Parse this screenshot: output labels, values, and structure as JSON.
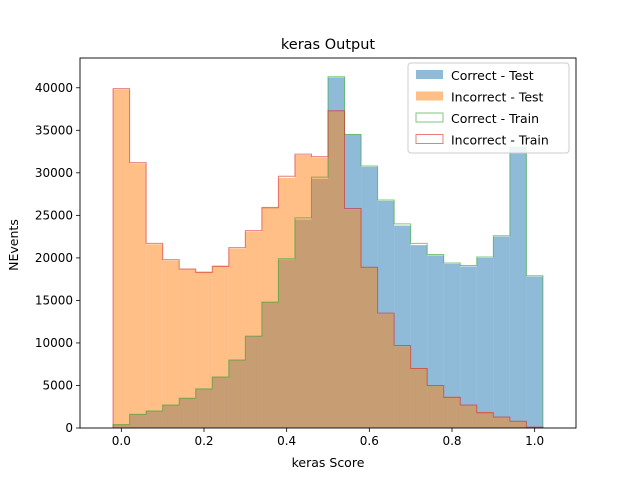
{
  "chart_data": {
    "type": "histogram",
    "title": "keras Output",
    "xlabel": "keras Score",
    "ylabel": "NEvents",
    "xlim": [
      -0.1,
      1.1
    ],
    "ylim": [
      0,
      43500
    ],
    "xticks": [
      0.0,
      0.2,
      0.4,
      0.6,
      0.8,
      1.0
    ],
    "xtick_labels": [
      "0.0",
      "0.2",
      "0.4",
      "0.6",
      "0.8",
      "1.0"
    ],
    "yticks": [
      0,
      5000,
      10000,
      15000,
      20000,
      25000,
      30000,
      35000,
      40000
    ],
    "ytick_labels": [
      "0",
      "5000",
      "10000",
      "15000",
      "20000",
      "25000",
      "30000",
      "35000",
      "40000"
    ],
    "bin_edges": [
      -0.02,
      0.02,
      0.06,
      0.1,
      0.14,
      0.18,
      0.22,
      0.26,
      0.3,
      0.34,
      0.38,
      0.42,
      0.46,
      0.5,
      0.54,
      0.58,
      0.62,
      0.66,
      0.7,
      0.74,
      0.78,
      0.82,
      0.86,
      0.9,
      0.94,
      0.98,
      1.02
    ],
    "series": [
      {
        "name": "Correct - Test",
        "style": "filled",
        "color": "#1f77b4",
        "values": [
          400,
          1600,
          2000,
          2700,
          3500,
          4600,
          6000,
          8000,
          10800,
          14800,
          19800,
          24500,
          29300,
          41200,
          34500,
          30700,
          26700,
          23800,
          21500,
          20300,
          19300,
          19000,
          20000,
          22500,
          33000,
          17800
        ]
      },
      {
        "name": "Incorrect - Test",
        "style": "filled",
        "color": "#ff7f0e",
        "values": [
          39800,
          31100,
          21600,
          19700,
          18700,
          18400,
          19100,
          21100,
          23100,
          26000,
          29400,
          32100,
          31800,
          37300,
          25700,
          18900,
          13400,
          9600,
          7000,
          5000,
          3700,
          2700,
          1900,
          1300,
          800,
          100
        ]
      },
      {
        "name": "Correct - Train",
        "style": "step",
        "color": "#2ca02c",
        "values": [
          400,
          1600,
          2000,
          2700,
          3500,
          4600,
          6000,
          8000,
          10800,
          14800,
          19900,
          24700,
          29500,
          41300,
          34500,
          30800,
          26800,
          24000,
          21700,
          20400,
          19400,
          19100,
          20100,
          22600,
          33000,
          17900
        ]
      },
      {
        "name": "Incorrect - Train",
        "style": "step",
        "color": "#d62728",
        "values": [
          39900,
          31200,
          21700,
          19800,
          18700,
          18300,
          19000,
          21200,
          23200,
          25900,
          29600,
          32200,
          31900,
          37300,
          25800,
          18900,
          13500,
          9700,
          7000,
          5000,
          3600,
          2700,
          1800,
          1300,
          800,
          100
        ]
      }
    ],
    "legend": {
      "position": "top-right",
      "entries": [
        "Correct - Test",
        "Incorrect - Test",
        "Correct - Train",
        "Incorrect - Train"
      ]
    }
  }
}
